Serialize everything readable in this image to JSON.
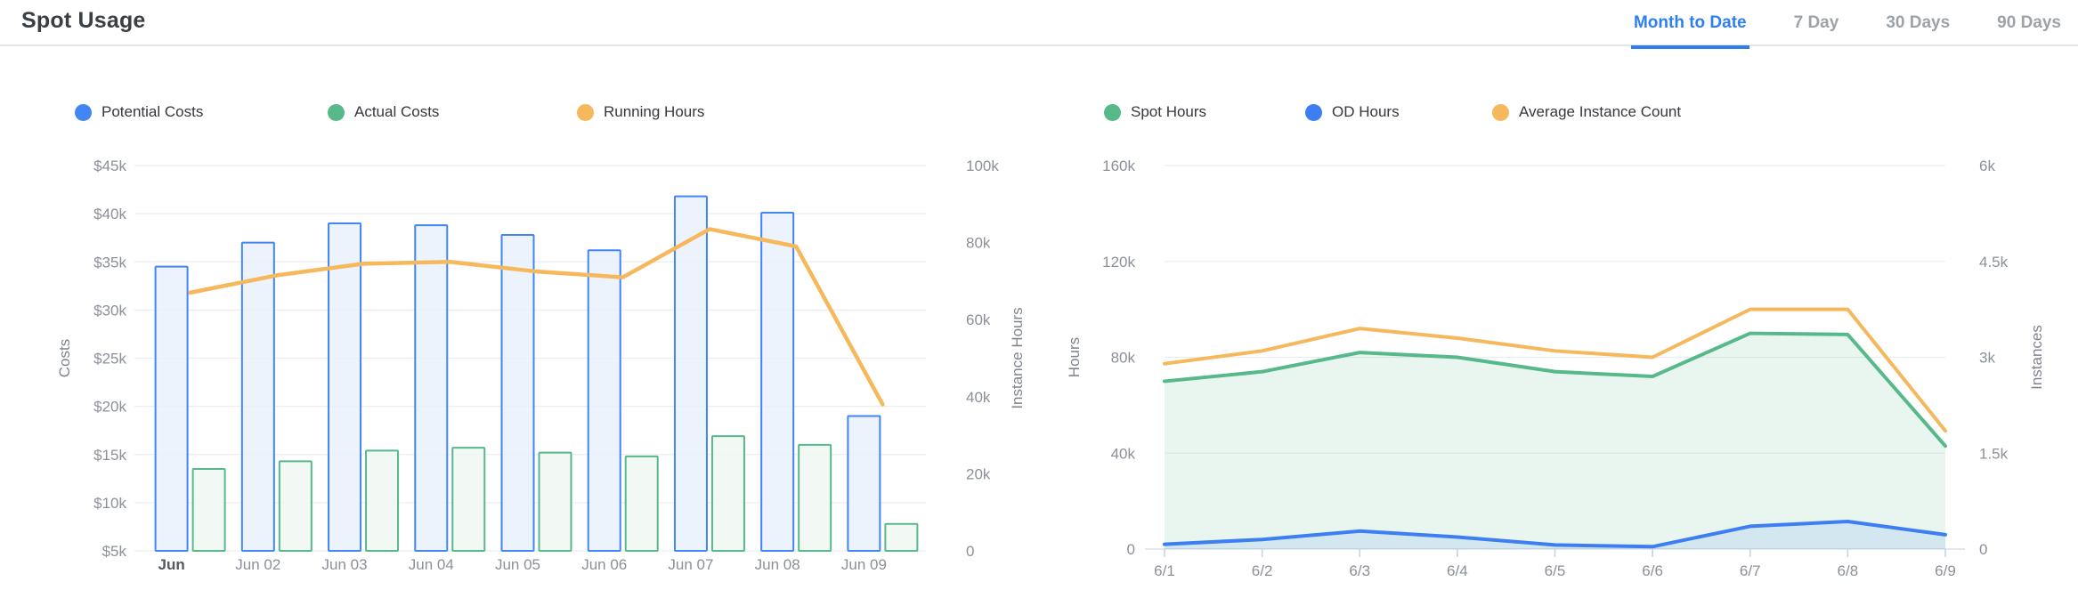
{
  "header": {
    "title": "Spot Usage",
    "tabs": [
      {
        "label": "Month to Date",
        "active": true
      },
      {
        "label": "7 Day",
        "active": false
      },
      {
        "label": "30 Days",
        "active": false
      },
      {
        "label": "90 Days",
        "active": false
      }
    ]
  },
  "colors": {
    "active_tab": "#2E7FF2",
    "inactive_tab": "#9DA2A9",
    "grid": "#ECEDEF",
    "axis_text": "#8B9099",
    "axis_name_text": "#80858D",
    "x_axis_line": "#DCE1E8",
    "x_tick_mark": "#C7D2E2"
  },
  "chart_data": [
    {
      "id": "costs-usage",
      "type": "bar",
      "categories": [
        "Jun",
        "Jun 02",
        "Jun 03",
        "Jun 04",
        "Jun 05",
        "Jun 06",
        "Jun 07",
        "Jun 08",
        "Jun 09"
      ],
      "series": [
        {
          "name": "Potential Costs",
          "kind": "bar",
          "axis": "left",
          "color": "#4285F4",
          "fill": "#E9F0FD",
          "values": [
            34500,
            37000,
            39000,
            38800,
            37800,
            36200,
            41800,
            40100,
            19000
          ]
        },
        {
          "name": "Actual Costs",
          "kind": "bar",
          "axis": "left",
          "color": "#57B98A",
          "fill": "#EFF8F3",
          "values": [
            13500,
            14300,
            15400,
            15700,
            15200,
            14800,
            16900,
            16000,
            7800
          ]
        },
        {
          "name": "Running Hours",
          "kind": "line",
          "axis": "right",
          "color": "#F5B85C",
          "values": [
            67000,
            71500,
            74500,
            75000,
            72500,
            71000,
            83500,
            79000,
            38000
          ]
        }
      ],
      "left_axis": {
        "label": "Costs",
        "min": 5000,
        "max": 45000,
        "ticks": [
          "$45k",
          "$40k",
          "$35k",
          "$30k",
          "$25k",
          "$20k",
          "$15k",
          "$10k",
          "$5k"
        ]
      },
      "right_axis": {
        "label": "Instance Hours",
        "min": 0,
        "max": 100000,
        "ticks": [
          "100k",
          "80k",
          "60k",
          "40k",
          "20k",
          "0"
        ]
      },
      "legend_position": "top",
      "grid": true
    },
    {
      "id": "hours-instances",
      "type": "area",
      "categories": [
        "6/1",
        "6/2",
        "6/3",
        "6/4",
        "6/5",
        "6/6",
        "6/7",
        "6/8",
        "6/9"
      ],
      "series": [
        {
          "name": "Spot Hours",
          "kind": "area",
          "axis": "left",
          "color": "#57B98A",
          "fill": "rgba(87,185,138,0.13)",
          "values": [
            70000,
            74000,
            82000,
            80000,
            74000,
            72000,
            90000,
            89500,
            43000
          ]
        },
        {
          "name": "OD Hours",
          "kind": "area",
          "axis": "left",
          "color": "#3D7FF3",
          "fill": "rgba(66,133,244,0.13)",
          "values": [
            2000,
            4000,
            7500,
            5000,
            1700,
            1000,
            9500,
            11500,
            6000
          ]
        },
        {
          "name": "Average Instance Count",
          "kind": "line",
          "axis": "right",
          "color": "#F5B85C",
          "values": [
            2900,
            3100,
            3450,
            3300,
            3100,
            3000,
            3750,
            3750,
            1850
          ]
        }
      ],
      "left_axis": {
        "label": "Hours",
        "min": 0,
        "max": 160000,
        "ticks": [
          "160k",
          "120k",
          "80k",
          "40k",
          "0"
        ]
      },
      "right_axis": {
        "label": "Instances",
        "min": 0,
        "max": 6000,
        "ticks": [
          "6k",
          "4.5k",
          "3k",
          "1.5k",
          "0"
        ]
      },
      "legend_position": "top",
      "grid": true
    }
  ]
}
